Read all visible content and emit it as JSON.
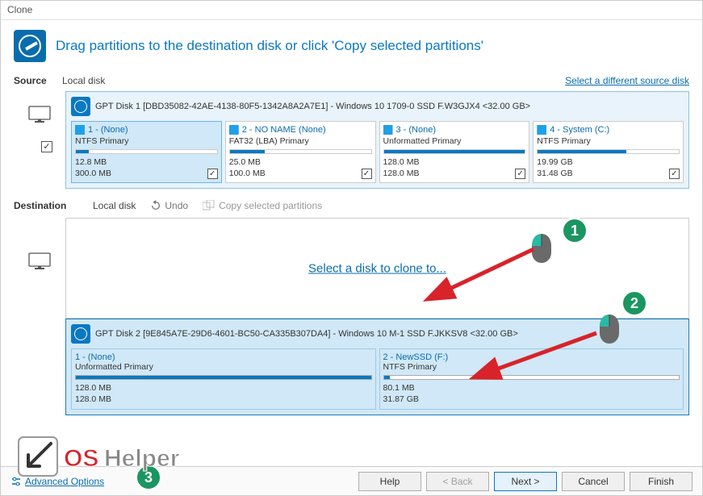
{
  "window": {
    "title": "Clone"
  },
  "header": {
    "instruction": "Drag partitions to the destination disk or click 'Copy selected partitions'"
  },
  "source": {
    "label": "Source",
    "diskType": "Local disk",
    "diffLink": "Select a different source disk",
    "disk": {
      "title": "GPT Disk 1 [DBD35082-42AE-4138-80F5-1342A8A2A7E1] - Windows 10 1709-0 SSD F.W3GJX4  <32.00 GB>"
    },
    "selectAllChecked": true,
    "partitions": [
      {
        "title": "1 -  (None)",
        "fs": "NTFS Primary",
        "used": "12.8 MB",
        "total": "300.0 MB",
        "fillPct": 9,
        "checked": true,
        "highlight": true
      },
      {
        "title": "2 - NO NAME (None)",
        "fs": "FAT32 (LBA) Primary",
        "used": "25.0 MB",
        "total": "100.0 MB",
        "fillPct": 25,
        "checked": true,
        "highlight": false
      },
      {
        "title": "3 -  (None)",
        "fs": "Unformatted Primary",
        "used": "128.0 MB",
        "total": "128.0 MB",
        "fillPct": 100,
        "checked": true,
        "highlight": false
      },
      {
        "title": "4 - System (C:)",
        "fs": "NTFS Primary",
        "used": "19.99 GB",
        "total": "31.48 GB",
        "fillPct": 63,
        "checked": true,
        "highlight": false
      }
    ]
  },
  "destination": {
    "label": "Destination",
    "diskType": "Local disk",
    "undo": "Undo",
    "copy": "Copy selected partitions",
    "selectLink": "Select a disk to clone to...",
    "disk": {
      "title": "GPT Disk 2 [9E845A7E-29D6-4601-BC50-CA335B307DA4] - Windows 10 M-1 SSD F.JKKSV8  <32.00 GB>"
    },
    "partitions": [
      {
        "title": "1 -  (None)",
        "fs": "Unformatted Primary",
        "used": "128.0 MB",
        "total": "128.0 MB",
        "fillPct": 100
      },
      {
        "title": "2 - NewSSD (F:)",
        "fs": "NTFS Primary",
        "used": "80.1 MB",
        "total": "31.87 GB",
        "fillPct": 2
      }
    ]
  },
  "advanced": {
    "label": "Advanced Options"
  },
  "buttons": {
    "help": "Help",
    "back": "< Back",
    "next": "Next >",
    "cancel": "Cancel",
    "finish": "Finish"
  },
  "annotations": {
    "n1": "1",
    "n2": "2",
    "n3": "3"
  },
  "overlay": {
    "brand": "OS Helper"
  },
  "colors": {
    "accent": "#0a78c2",
    "link": "#0a6cad",
    "panel": "#e8f3fb",
    "green": "#1a9660",
    "arrow": "#d8232a"
  }
}
